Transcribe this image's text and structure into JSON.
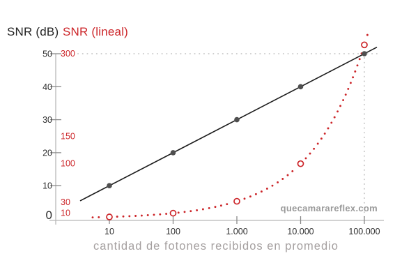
{
  "chart_data": {
    "type": "line",
    "x_scale": "log",
    "categories": [
      10,
      100,
      1000,
      10000,
      100000
    ],
    "x_tick_labels": [
      "10",
      "100",
      "1.000",
      "10.000",
      "100.000"
    ],
    "series": [
      {
        "name": "SNR (dB)",
        "axis": "db",
        "marker": "filled-dot",
        "line": "solid",
        "values": [
          10,
          20,
          30,
          40,
          50
        ]
      },
      {
        "name": "SNR (lineal)",
        "axis": "lineal",
        "marker": "open-circle",
        "line": "dotted",
        "values": [
          3.16,
          10,
          31.62,
          100,
          316.23
        ]
      }
    ],
    "db_axis": {
      "title": "SNR (dB)",
      "ticks": [
        0,
        10,
        20,
        30,
        40,
        50
      ],
      "range": [
        0,
        50
      ]
    },
    "lineal_axis": {
      "title": "SNR (lineal)",
      "tick_values": [
        10,
        30,
        100,
        150,
        300
      ],
      "tick_labels": [
        "10",
        "30",
        "100",
        "150",
        "300"
      ],
      "range": [
        0,
        300
      ]
    },
    "guides": {
      "horizontal_at_db": 50,
      "vertical_at_x": 100000
    },
    "xlabel": "cantidad de fotones recibidos en promedio",
    "watermark": "quecamarareflex.com",
    "legend_position": "top-left-titles",
    "grid": "off"
  },
  "colors": {
    "accent_red": "#cc2529",
    "line_black": "#1c1c1c",
    "marker_gray": "#4f4f4f",
    "axis_gray": "#b8b8b8",
    "tick_gray": "#8a8a8a",
    "guide_gray": "#cbcbcb",
    "tick_label_color": "#2e2e2e",
    "watermark_gray": "#9b9b9b",
    "xlabel_gray": "#a5a0a0"
  }
}
